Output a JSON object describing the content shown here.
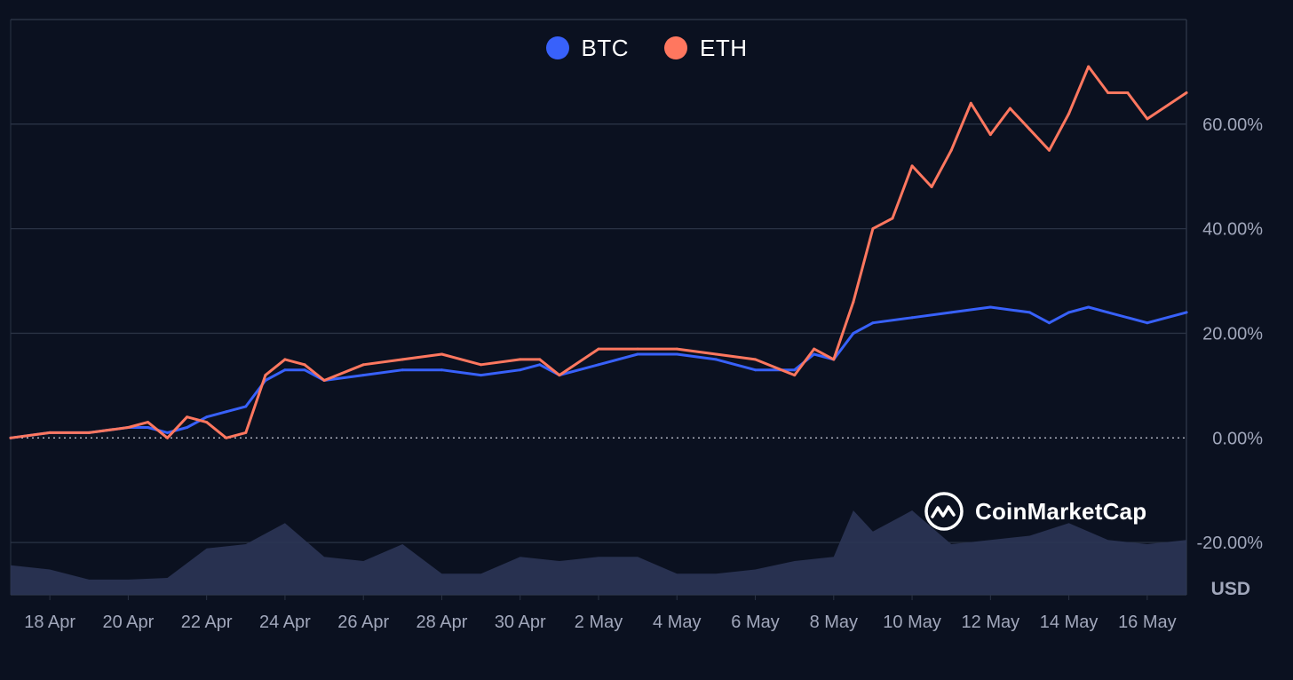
{
  "legend": {
    "items": [
      {
        "label": "BTC",
        "color": "#3861fb"
      },
      {
        "label": "ETH",
        "color": "#ff775f"
      }
    ]
  },
  "watermark": {
    "text": "CoinMarketCap"
  },
  "colors": {
    "background": "#0b1120",
    "grid": "#2a3244",
    "tick_text": "#a1a7bb",
    "volume": "#2b3555",
    "zero_line": "#c9ccd6"
  },
  "chart_data": {
    "type": "line",
    "xlim": [
      "2023-04-17",
      "2023-05-17"
    ],
    "ylim": [
      -0.3,
      0.8
    ],
    "y_unit_label": "USD",
    "x_ticks": [
      {
        "date": "2023-04-18",
        "label": "18 Apr"
      },
      {
        "date": "2023-04-20",
        "label": "20 Apr"
      },
      {
        "date": "2023-04-22",
        "label": "22 Apr"
      },
      {
        "date": "2023-04-24",
        "label": "24 Apr"
      },
      {
        "date": "2023-04-26",
        "label": "26 Apr"
      },
      {
        "date": "2023-04-28",
        "label": "28 Apr"
      },
      {
        "date": "2023-04-30",
        "label": "30 Apr"
      },
      {
        "date": "2023-05-02",
        "label": "2 May"
      },
      {
        "date": "2023-05-04",
        "label": "4 May"
      },
      {
        "date": "2023-05-06",
        "label": "6 May"
      },
      {
        "date": "2023-05-08",
        "label": "8 May"
      },
      {
        "date": "2023-05-10",
        "label": "10 May"
      },
      {
        "date": "2023-05-12",
        "label": "12 May"
      },
      {
        "date": "2023-05-14",
        "label": "14 May"
      },
      {
        "date": "2023-05-16",
        "label": "16 May"
      }
    ],
    "y_ticks": [
      {
        "value": 0.6,
        "label": "60.00%"
      },
      {
        "value": 0.4,
        "label": "40.00%"
      },
      {
        "value": 0.2,
        "label": "20.00%"
      },
      {
        "value": 0.0,
        "label": "0.00%"
      },
      {
        "value": -0.2,
        "label": "-20.00%"
      }
    ],
    "grid": true,
    "legend_position": "top-center",
    "series": [
      {
        "name": "BTC",
        "color": "#3861fb",
        "points": [
          [
            "2023-04-17",
            0.0
          ],
          [
            "2023-04-18",
            0.01
          ],
          [
            "2023-04-19",
            0.01
          ],
          [
            "2023-04-20",
            0.02
          ],
          [
            "2023-04-20 12:00",
            0.02
          ],
          [
            "2023-04-21",
            0.01
          ],
          [
            "2023-04-21 12:00",
            0.02
          ],
          [
            "2023-04-22",
            0.04
          ],
          [
            "2023-04-22 12:00",
            0.05
          ],
          [
            "2023-04-23",
            0.06
          ],
          [
            "2023-04-23 12:00",
            0.11
          ],
          [
            "2023-04-24",
            0.13
          ],
          [
            "2023-04-24 12:00",
            0.13
          ],
          [
            "2023-04-25",
            0.11
          ],
          [
            "2023-04-26",
            0.12
          ],
          [
            "2023-04-27",
            0.13
          ],
          [
            "2023-04-28",
            0.13
          ],
          [
            "2023-04-29",
            0.12
          ],
          [
            "2023-04-30",
            0.13
          ],
          [
            "2023-04-30 12:00",
            0.14
          ],
          [
            "2023-05-01",
            0.12
          ],
          [
            "2023-05-02",
            0.14
          ],
          [
            "2023-05-03",
            0.16
          ],
          [
            "2023-05-04",
            0.16
          ],
          [
            "2023-05-05",
            0.15
          ],
          [
            "2023-05-06",
            0.13
          ],
          [
            "2023-05-07",
            0.13
          ],
          [
            "2023-05-07 12:00",
            0.16
          ],
          [
            "2023-05-08",
            0.15
          ],
          [
            "2023-05-08 12:00",
            0.2
          ],
          [
            "2023-05-09",
            0.22
          ],
          [
            "2023-05-10",
            0.23
          ],
          [
            "2023-05-11",
            0.24
          ],
          [
            "2023-05-12",
            0.25
          ],
          [
            "2023-05-13",
            0.24
          ],
          [
            "2023-05-13 12:00",
            0.22
          ],
          [
            "2023-05-14",
            0.24
          ],
          [
            "2023-05-14 12:00",
            0.25
          ],
          [
            "2023-05-15",
            0.24
          ],
          [
            "2023-05-16",
            0.22
          ],
          [
            "2023-05-17",
            0.24
          ]
        ]
      },
      {
        "name": "ETH",
        "color": "#ff775f",
        "points": [
          [
            "2023-04-17",
            0.0
          ],
          [
            "2023-04-18",
            0.01
          ],
          [
            "2023-04-19",
            0.01
          ],
          [
            "2023-04-20",
            0.02
          ],
          [
            "2023-04-20 12:00",
            0.03
          ],
          [
            "2023-04-21",
            0.0
          ],
          [
            "2023-04-21 12:00",
            0.04
          ],
          [
            "2023-04-22",
            0.03
          ],
          [
            "2023-04-22 12:00",
            0.0
          ],
          [
            "2023-04-23",
            0.01
          ],
          [
            "2023-04-23 12:00",
            0.12
          ],
          [
            "2023-04-24",
            0.15
          ],
          [
            "2023-04-24 12:00",
            0.14
          ],
          [
            "2023-04-25",
            0.11
          ],
          [
            "2023-04-26",
            0.14
          ],
          [
            "2023-04-27",
            0.15
          ],
          [
            "2023-04-28",
            0.16
          ],
          [
            "2023-04-29",
            0.14
          ],
          [
            "2023-04-30",
            0.15
          ],
          [
            "2023-04-30 12:00",
            0.15
          ],
          [
            "2023-05-01",
            0.12
          ],
          [
            "2023-05-02",
            0.17
          ],
          [
            "2023-05-03",
            0.17
          ],
          [
            "2023-05-04",
            0.17
          ],
          [
            "2023-05-05",
            0.16
          ],
          [
            "2023-05-06",
            0.15
          ],
          [
            "2023-05-07",
            0.12
          ],
          [
            "2023-05-07 12:00",
            0.17
          ],
          [
            "2023-05-08",
            0.15
          ],
          [
            "2023-05-08 12:00",
            0.26
          ],
          [
            "2023-05-09",
            0.4
          ],
          [
            "2023-05-09 12:00",
            0.42
          ],
          [
            "2023-05-10",
            0.52
          ],
          [
            "2023-05-10 12:00",
            0.48
          ],
          [
            "2023-05-11",
            0.55
          ],
          [
            "2023-05-11 12:00",
            0.64
          ],
          [
            "2023-05-12",
            0.58
          ],
          [
            "2023-05-12 12:00",
            0.63
          ],
          [
            "2023-05-13",
            0.59
          ],
          [
            "2023-05-13 12:00",
            0.55
          ],
          [
            "2023-05-14",
            0.62
          ],
          [
            "2023-05-14 12:00",
            0.71
          ],
          [
            "2023-05-15",
            0.66
          ],
          [
            "2023-05-15 12:00",
            0.66
          ],
          [
            "2023-05-16",
            0.61
          ],
          [
            "2023-05-17",
            0.66
          ]
        ]
      }
    ],
    "volume": {
      "name": "volume",
      "ylim": [
        0,
        1
      ],
      "points": [
        [
          "2023-04-17",
          0.35
        ],
        [
          "2023-04-18",
          0.3
        ],
        [
          "2023-04-19",
          0.18
        ],
        [
          "2023-04-20",
          0.18
        ],
        [
          "2023-04-21",
          0.2
        ],
        [
          "2023-04-22",
          0.55
        ],
        [
          "2023-04-23",
          0.6
        ],
        [
          "2023-04-24",
          0.85
        ],
        [
          "2023-04-25",
          0.45
        ],
        [
          "2023-04-26",
          0.4
        ],
        [
          "2023-04-27",
          0.6
        ],
        [
          "2023-04-28",
          0.25
        ],
        [
          "2023-04-29",
          0.25
        ],
        [
          "2023-04-30",
          0.45
        ],
        [
          "2023-05-01",
          0.4
        ],
        [
          "2023-05-02",
          0.45
        ],
        [
          "2023-05-03",
          0.45
        ],
        [
          "2023-05-04",
          0.25
        ],
        [
          "2023-05-05",
          0.25
        ],
        [
          "2023-05-06",
          0.3
        ],
        [
          "2023-05-07",
          0.4
        ],
        [
          "2023-05-08",
          0.45
        ],
        [
          "2023-05-08 12:00",
          1.0
        ],
        [
          "2023-05-09",
          0.75
        ],
        [
          "2023-05-10",
          1.0
        ],
        [
          "2023-05-11",
          0.6
        ],
        [
          "2023-05-12",
          0.65
        ],
        [
          "2023-05-13",
          0.7
        ],
        [
          "2023-05-14",
          0.85
        ],
        [
          "2023-05-15",
          0.65
        ],
        [
          "2023-05-16",
          0.6
        ],
        [
          "2023-05-17",
          0.65
        ]
      ]
    }
  }
}
